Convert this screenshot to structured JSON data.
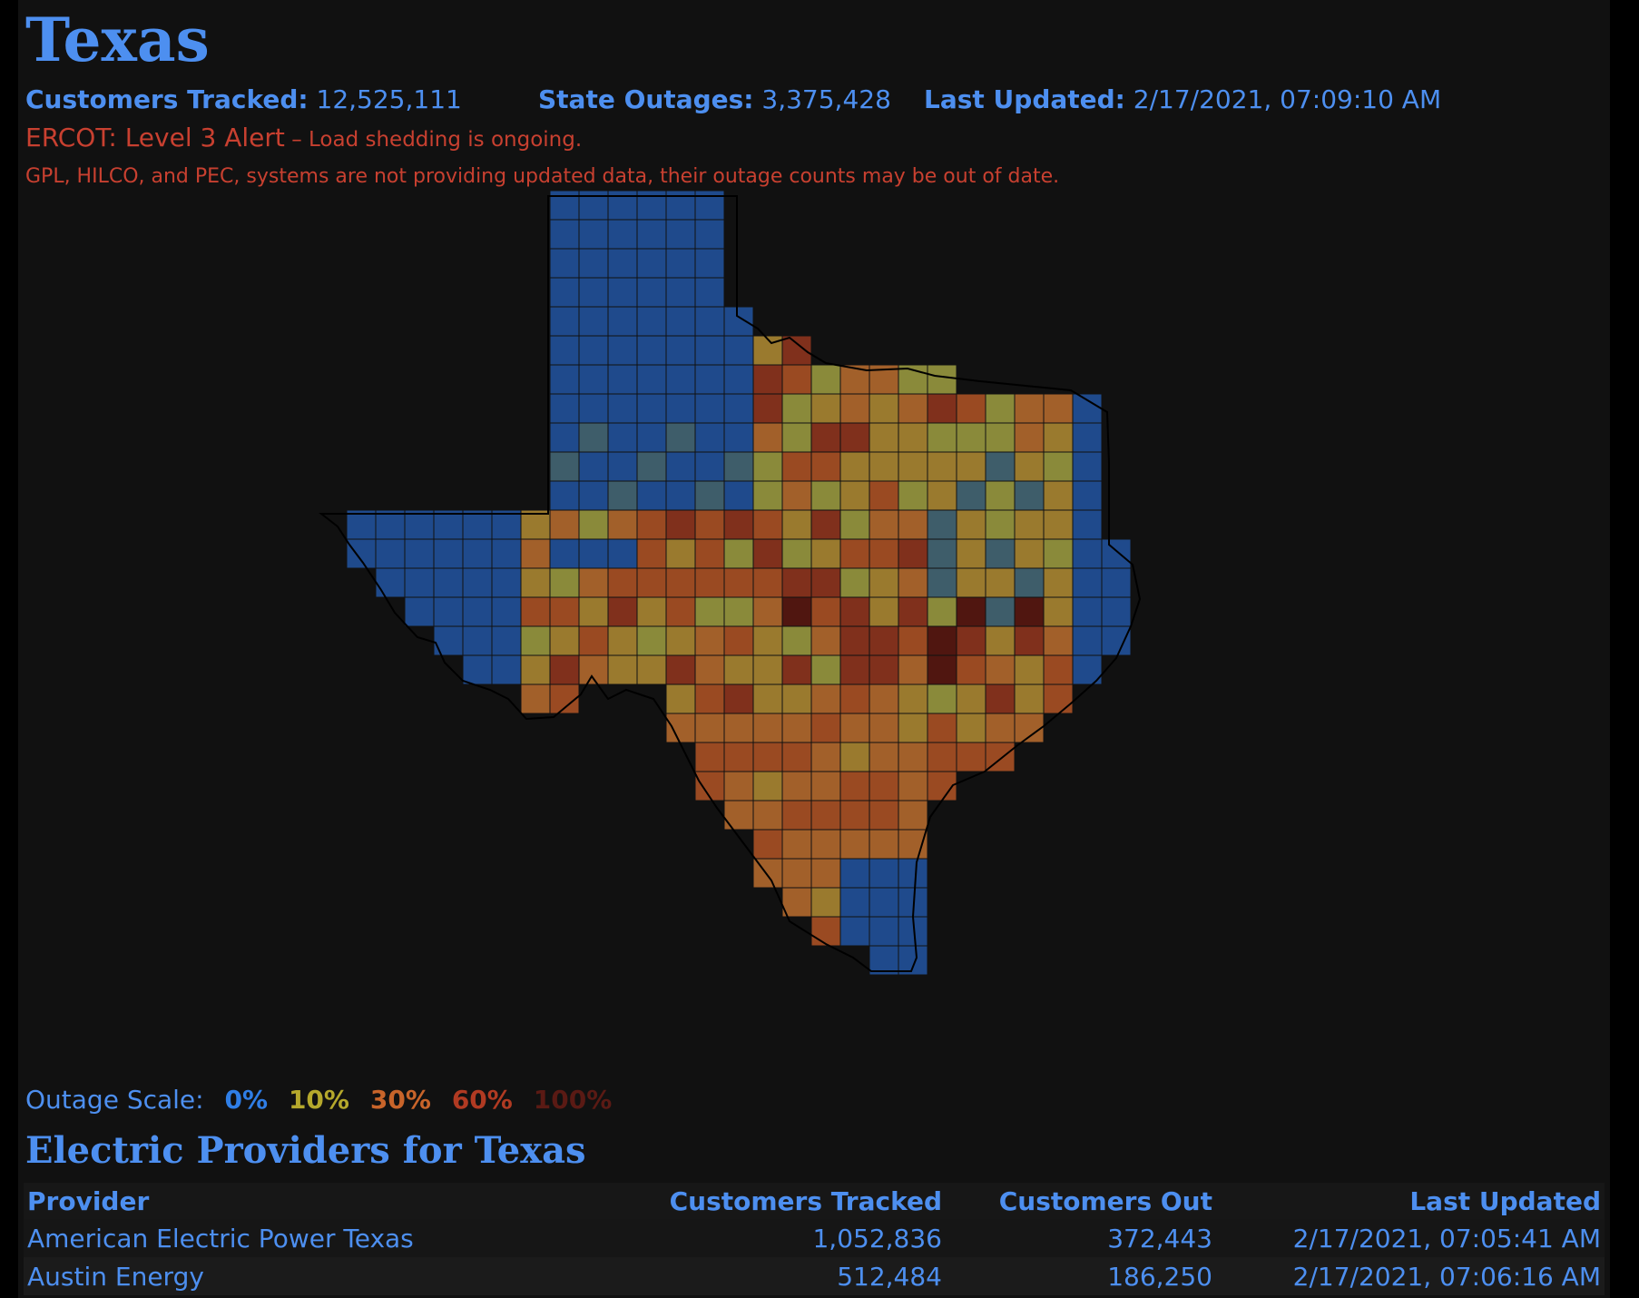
{
  "header": {
    "title": "Texas",
    "customers_tracked_label": "Customers Tracked:",
    "customers_tracked_value": "12,525,111",
    "state_outages_label": "State Outages:",
    "state_outages_value": "3,375,428",
    "last_updated_label": "Last Updated:",
    "last_updated_value": "2/17/2021, 07:09:10 AM"
  },
  "alerts": {
    "ercot_main": "ERCOT: Level 3 Alert",
    "ercot_detail": " – Load shedding is ongoing.",
    "stale_notice": "GPL, HILCO, and PEC, systems are not providing updated data, their outage counts may be out of date."
  },
  "scale": {
    "label": "Outage Scale:",
    "steps": [
      {
        "text": "0%",
        "color": "#2f7ee6"
      },
      {
        "text": "10%",
        "color": "#b5a82c"
      },
      {
        "text": "30%",
        "color": "#c8642a"
      },
      {
        "text": "60%",
        "color": "#b03a22"
      },
      {
        "text": "100%",
        "color": "#5a1a14"
      }
    ]
  },
  "map": {
    "palette": {
      "c0": "#1f4a8c",
      "c5": "#3e5d6a",
      "c10": "#8a8a3a",
      "c20": "#9a7a2e",
      "c30": "#a2602a",
      "c40": "#9a4a22",
      "c60": "#80301c",
      "c100": "#501610",
      "stroke": "#111111"
    }
  },
  "providers": {
    "title": "Electric Providers for Texas",
    "columns": [
      "Provider",
      "Customers Tracked",
      "Customers Out",
      "Last Updated"
    ],
    "rows": [
      {
        "provider": "American Electric Power Texas",
        "tracked": "1,052,836",
        "out": "372,443",
        "updated": "2/17/2021, 07:05:41 AM"
      },
      {
        "provider": "Austin Energy",
        "tracked": "512,484",
        "out": "186,250",
        "updated": "2/17/2021, 07:06:16 AM"
      }
    ]
  }
}
